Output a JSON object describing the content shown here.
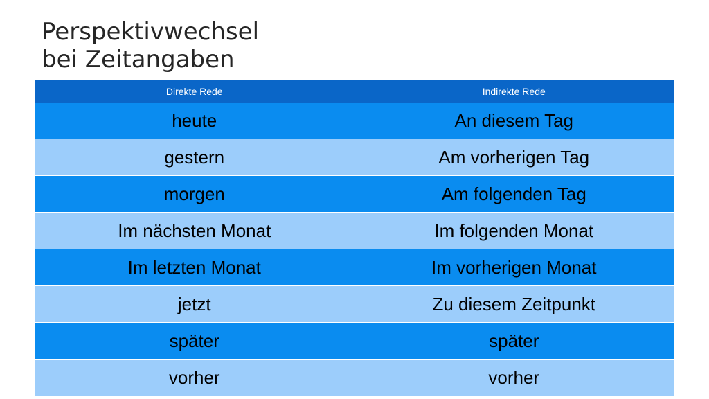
{
  "slide": {
    "title_line1": "Perspektivwechsel",
    "title_line2": "bei Zeitangaben"
  },
  "table": {
    "headers": [
      "Direkte Rede",
      "Indirekte Rede"
    ],
    "rows": [
      [
        "heute",
        "An diesem Tag"
      ],
      [
        "gestern",
        "Am vorherigen Tag"
      ],
      [
        "morgen",
        "Am folgenden Tag"
      ],
      [
        "Im nächsten Monat",
        "Im folgenden Monat"
      ],
      [
        "Im letzten Monat",
        "Im vorherigen Monat"
      ],
      [
        "jetzt",
        "Zu diesem Zeitpunkt"
      ],
      [
        "später",
        "später"
      ],
      [
        "vorher",
        "vorher"
      ]
    ]
  },
  "colors": {
    "header_bg": "#0a66c8",
    "row_dark": "#0a8cf0",
    "row_light": "#9ccdfb"
  }
}
